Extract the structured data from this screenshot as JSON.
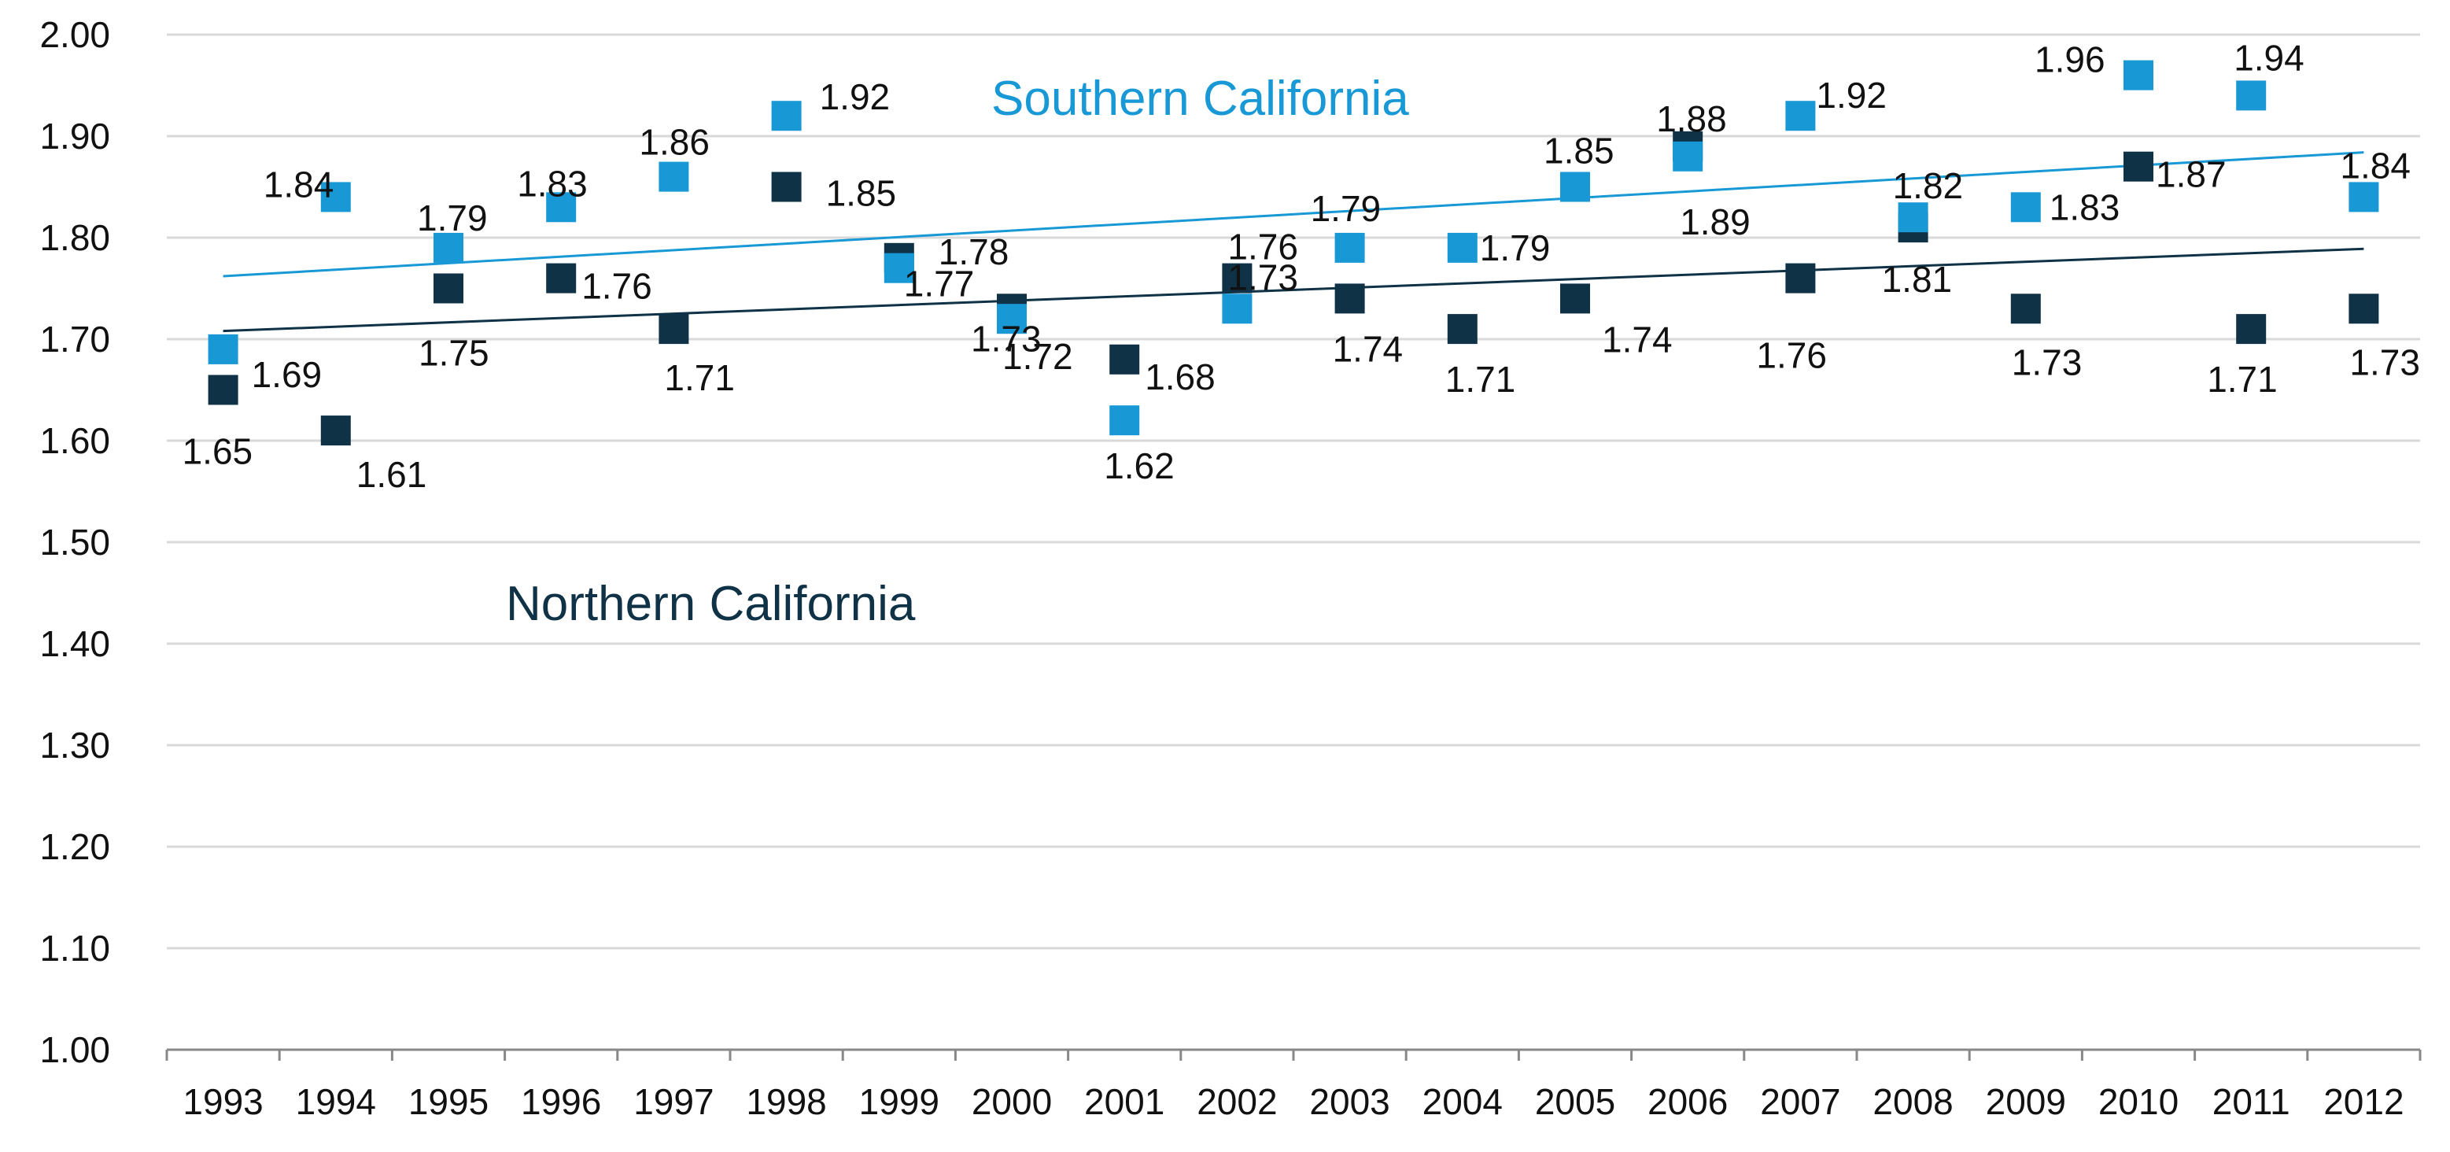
{
  "chart_data": {
    "type": "scatter",
    "title": "",
    "xlabel": "",
    "ylabel": "",
    "categories": [
      "1993",
      "1994",
      "1995",
      "1996",
      "1997",
      "1998",
      "1999",
      "2000",
      "2001",
      "2002",
      "2003",
      "2004",
      "2005",
      "2006",
      "2007",
      "2008",
      "2009",
      "2010",
      "2011",
      "2012"
    ],
    "ylim": [
      1.0,
      2.0
    ],
    "ytick_step": 0.1,
    "ytick_labels": [
      "1.00",
      "1.10",
      "1.20",
      "1.30",
      "1.40",
      "1.50",
      "1.60",
      "1.70",
      "1.80",
      "1.90",
      "2.00"
    ],
    "gridlines": true,
    "series": [
      {
        "name": "Southern California",
        "color": "#1899D6",
        "marker": "square",
        "values": [
          1.69,
          1.84,
          1.79,
          1.83,
          1.86,
          1.92,
          1.77,
          1.72,
          1.62,
          1.73,
          1.79,
          1.79,
          1.85,
          1.88,
          1.92,
          1.82,
          1.83,
          1.96,
          1.94,
          1.84
        ],
        "labels": [
          "1.69",
          "1.84",
          "1.79",
          "1.83",
          "1.86",
          "1.92",
          "1.77",
          "1.72",
          "1.62",
          "1.73",
          "1.79",
          "1.79",
          "1.85",
          "1.88",
          "1.92",
          "1.82",
          "1.83",
          "1.96",
          "1.94",
          "1.84"
        ],
        "trendline": [
          1.762,
          1.884
        ]
      },
      {
        "name": "Northern California",
        "color": "#0F3247",
        "marker": "square",
        "values": [
          1.65,
          1.61,
          1.75,
          1.76,
          1.71,
          1.85,
          1.78,
          1.73,
          1.68,
          1.76,
          1.74,
          1.71,
          1.74,
          1.89,
          1.76,
          1.81,
          1.73,
          1.87,
          1.71,
          1.73
        ],
        "labels": [
          "1.65",
          "1.61",
          "1.75",
          "1.76",
          "1.71",
          "1.85",
          "1.78",
          "1.73",
          "1.68",
          "1.76",
          "1.74",
          "1.71",
          "1.74",
          "1.89",
          "1.76",
          "1.81",
          "1.73",
          "1.87",
          "1.71",
          "1.73"
        ],
        "trendline": [
          1.708,
          1.789
        ]
      }
    ],
    "annotations": [
      "Southern California",
      "Northern California"
    ]
  }
}
